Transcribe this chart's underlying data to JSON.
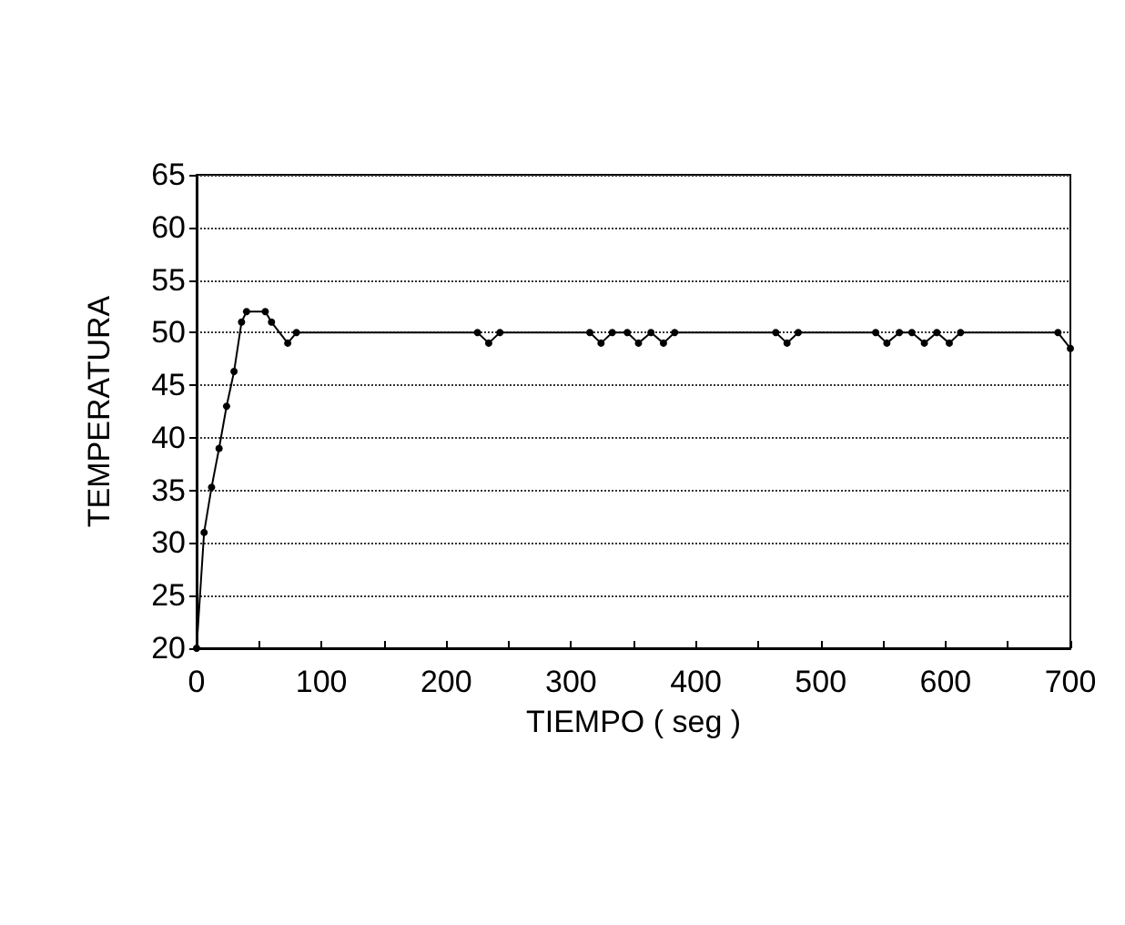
{
  "chart_data": {
    "type": "line",
    "xlabel": "TIEMPO ( seg )",
    "ylabel": "TEMPERATURA",
    "series": [
      {
        "color": "#000000",
        "x": [
          0,
          6,
          12,
          18,
          24,
          30,
          36,
          40,
          55,
          60,
          73,
          80,
          225,
          234,
          243,
          315,
          324,
          333,
          345,
          354,
          364,
          374,
          383,
          464,
          473,
          482,
          544,
          553,
          563,
          573,
          583,
          593,
          603,
          612,
          690,
          700
        ],
        "values": [
          20,
          31,
          35.3,
          39,
          43,
          46.3,
          51,
          52,
          52,
          51,
          49,
          50,
          50,
          49,
          50,
          50,
          49,
          50,
          50,
          49,
          50,
          49,
          50,
          50,
          49,
          50,
          50,
          49,
          50,
          50,
          49,
          50,
          49,
          50,
          50,
          48.5
        ]
      }
    ],
    "xlim": [
      0,
      700
    ],
    "xticks": [
      0,
      {
        "value": 50,
        "label": null
      },
      100,
      {
        "value": 150,
        "label": null
      },
      200,
      {
        "value": 250,
        "label": null
      },
      300,
      {
        "value": 350,
        "label": null
      },
      400,
      {
        "value": 450,
        "label": null
      },
      500,
      {
        "value": 550,
        "label": null
      },
      600,
      {
        "value": 650,
        "label": null
      },
      700
    ],
    "ylim": [
      20,
      65
    ],
    "yticks": [
      20,
      25,
      30,
      35,
      40,
      45,
      50,
      55,
      60,
      65
    ],
    "grid": "y",
    "marker": "circle",
    "line_style": "solid"
  }
}
